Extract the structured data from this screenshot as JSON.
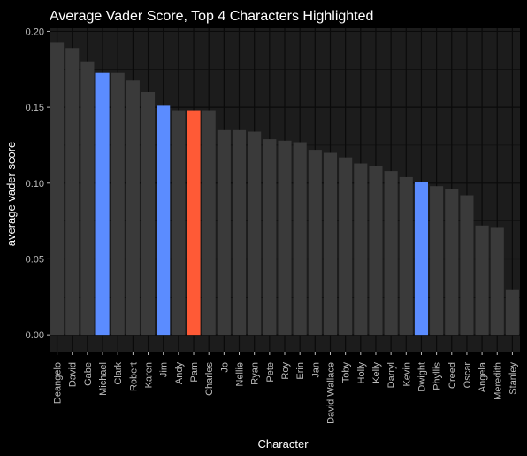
{
  "chart_data": {
    "type": "bar",
    "title": "Average Vader Score, Top 4 Characters Highlighted",
    "xlabel": "Character",
    "ylabel": "average vader score",
    "ylim": [
      -0.011,
      0.202
    ],
    "yticks": [
      0.0,
      0.05,
      0.1,
      0.15,
      0.2
    ],
    "ytick_labels": [
      "0.00",
      "0.05",
      "0.10",
      "0.15",
      "0.20"
    ],
    "grid": true,
    "legend": "none",
    "categories": [
      "Deangelo",
      "David",
      "Gabe",
      "Michael",
      "Clark",
      "Robert",
      "Karen",
      "Jim",
      "Andy",
      "Pam",
      "Charles",
      "Jo",
      "Nellie",
      "Ryan",
      "Pete",
      "Roy",
      "Erin",
      "Jan",
      "David Wallace",
      "Toby",
      "Holly",
      "Kelly",
      "Darryl",
      "Kevin",
      "Dwight",
      "Phyllis",
      "Creed",
      "Oscar",
      "Angela",
      "Meredith",
      "Stanley"
    ],
    "values": [
      0.193,
      0.189,
      0.18,
      0.173,
      0.173,
      0.168,
      0.16,
      0.151,
      0.148,
      0.148,
      0.148,
      0.135,
      0.135,
      0.134,
      0.129,
      0.128,
      0.127,
      0.122,
      0.12,
      0.117,
      0.113,
      0.111,
      0.108,
      0.104,
      0.101,
      0.098,
      0.096,
      0.092,
      0.072,
      0.071,
      0.03
    ],
    "highlight": [
      "Michael",
      "Jim",
      "Pam",
      "Dwight"
    ],
    "bar_colors": {
      "Michael": "#5b8cff",
      "Jim": "#5b8cff",
      "Dwight": "#5b8cff",
      "Pam": "#ff5a36"
    },
    "default_bar_color": "#3a3a3a",
    "panel_background": "#1c1c1c",
    "grid_color": "#0a0a0a"
  }
}
